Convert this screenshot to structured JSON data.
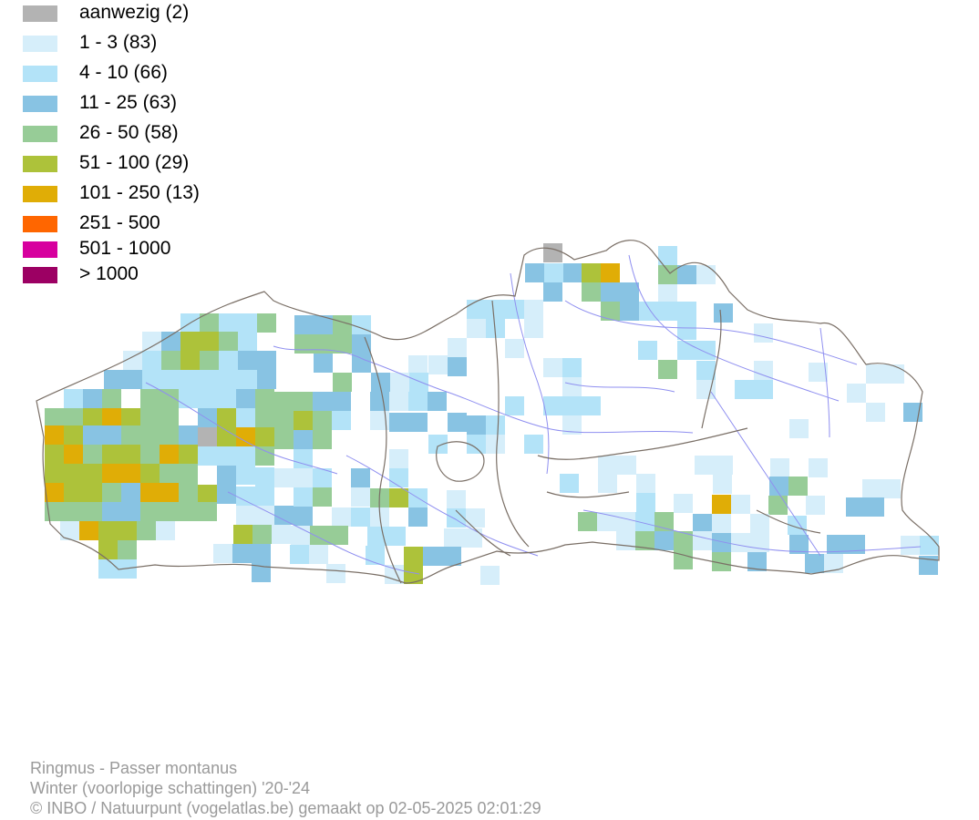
{
  "legend": [
    {
      "label": "aanwezig (2)",
      "color": "#b3b3b3"
    },
    {
      "label": "1 - 3 (83)",
      "color": "#d6eefa"
    },
    {
      "label": "4 - 10 (66)",
      "color": "#b3e3f8"
    },
    {
      "label": "11 - 25 (63)",
      "color": "#88c3e3"
    },
    {
      "label": "26 - 50 (58)",
      "color": "#97cc97"
    },
    {
      "label": "51 - 100 (29)",
      "color": "#adc23a"
    },
    {
      "label": "101 - 250 (13)",
      "color": "#e0ad06"
    },
    {
      "label": "251 - 500",
      "color": "#ff6600"
    },
    {
      "label": "501 - 1000",
      "color": "#d7009e"
    },
    {
      "label": "> 1000",
      "color": "#9c0063"
    }
  ],
  "footer": {
    "species": "Ringmus - Passer montanus",
    "period": "Winter (voorlopige schattingen) '20-'24",
    "credit": "© INBO / Natuurpunt (vogelatlas.be) gemaakt op 02-05-2025 02:01:29"
  },
  "map_colors": {
    "border": "#7a6f66",
    "river": "#8f8ff0"
  }
}
